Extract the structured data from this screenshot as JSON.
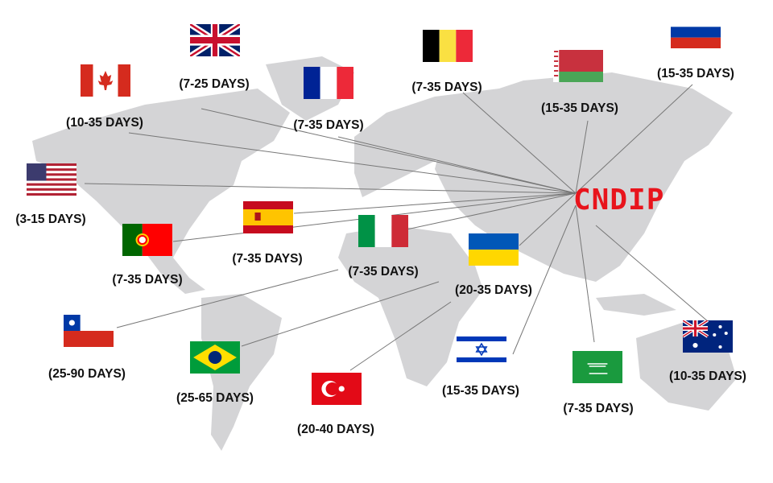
{
  "hub": {
    "label": "CNDIP",
    "color": "#e8141c"
  },
  "destinations": [
    {
      "country": "United Kingdom",
      "flag": "uk-flag",
      "time": "(7-25 DAYS)"
    },
    {
      "country": "Canada",
      "flag": "canada-flag",
      "time": "(10-35 DAYS)"
    },
    {
      "country": "France",
      "flag": "france-flag",
      "time": "(7-35 DAYS)"
    },
    {
      "country": "Belgium",
      "flag": "belgium-flag",
      "time": "(7-35 DAYS)"
    },
    {
      "country": "Belarus",
      "flag": "belarus-flag",
      "time": "(15-35 DAYS)"
    },
    {
      "country": "Russia",
      "flag": "russia-flag",
      "time": "(15-35 DAYS)"
    },
    {
      "country": "USA",
      "flag": "usa-flag",
      "time": "(3-15 DAYS)"
    },
    {
      "country": "Portugal",
      "flag": "portugal-flag",
      "time": "(7-35 DAYS)"
    },
    {
      "country": "Spain",
      "flag": "spain-flag",
      "time": "(7-35 DAYS)"
    },
    {
      "country": "Italy",
      "flag": "italy-flag",
      "time": "(7-35 DAYS)"
    },
    {
      "country": "Ukraine",
      "flag": "ukraine-flag",
      "time": "(20-35 DAYS)"
    },
    {
      "country": "Chile",
      "flag": "chile-flag",
      "time": "(25-90 DAYS)"
    },
    {
      "country": "Brazil",
      "flag": "brazil-flag",
      "time": "(25-65 DAYS)"
    },
    {
      "country": "Turkey",
      "flag": "turkey-flag",
      "time": "(20-40 DAYS)"
    },
    {
      "country": "Israel",
      "flag": "israel-flag",
      "time": "(15-35 DAYS)"
    },
    {
      "country": "Saudi Arabia",
      "flag": "saudi-flag",
      "time": "(7-35 DAYS)"
    },
    {
      "country": "Australia",
      "flag": "australia-flag",
      "time": "(10-35 DAYS)"
    }
  ]
}
